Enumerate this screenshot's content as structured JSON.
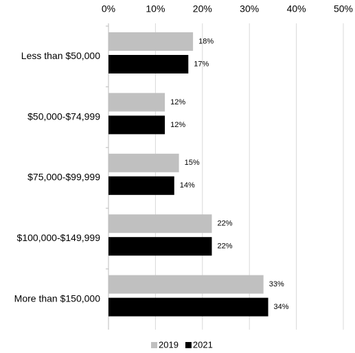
{
  "chart_data": {
    "type": "bar",
    "orientation": "horizontal",
    "categories": [
      "Less than $50,000",
      "$50,000-$74,999",
      "$75,000-$99,999",
      "$100,000-$149,999",
      "More than $150,000"
    ],
    "series": [
      {
        "name": "2019",
        "color": "#c0c0c0",
        "values": [
          18,
          12,
          15,
          22,
          33
        ],
        "value_labels": [
          "18%",
          "12%",
          "15%",
          "22%",
          "33%"
        ]
      },
      {
        "name": "2021",
        "color": "#000000",
        "values": [
          17,
          12,
          14,
          22,
          34
        ],
        "value_labels": [
          "17%",
          "12%",
          "14%",
          "22%",
          "34%"
        ]
      }
    ],
    "xlim": [
      0,
      50
    ],
    "xticks": [
      {
        "value": 0,
        "label": "0%"
      },
      {
        "value": 10,
        "label": "10%"
      },
      {
        "value": 20,
        "label": "20%"
      },
      {
        "value": 30,
        "label": "30%"
      },
      {
        "value": 40,
        "label": "40%"
      },
      {
        "value": 50,
        "label": "50%"
      }
    ],
    "grid": true,
    "legend": "bottom"
  }
}
